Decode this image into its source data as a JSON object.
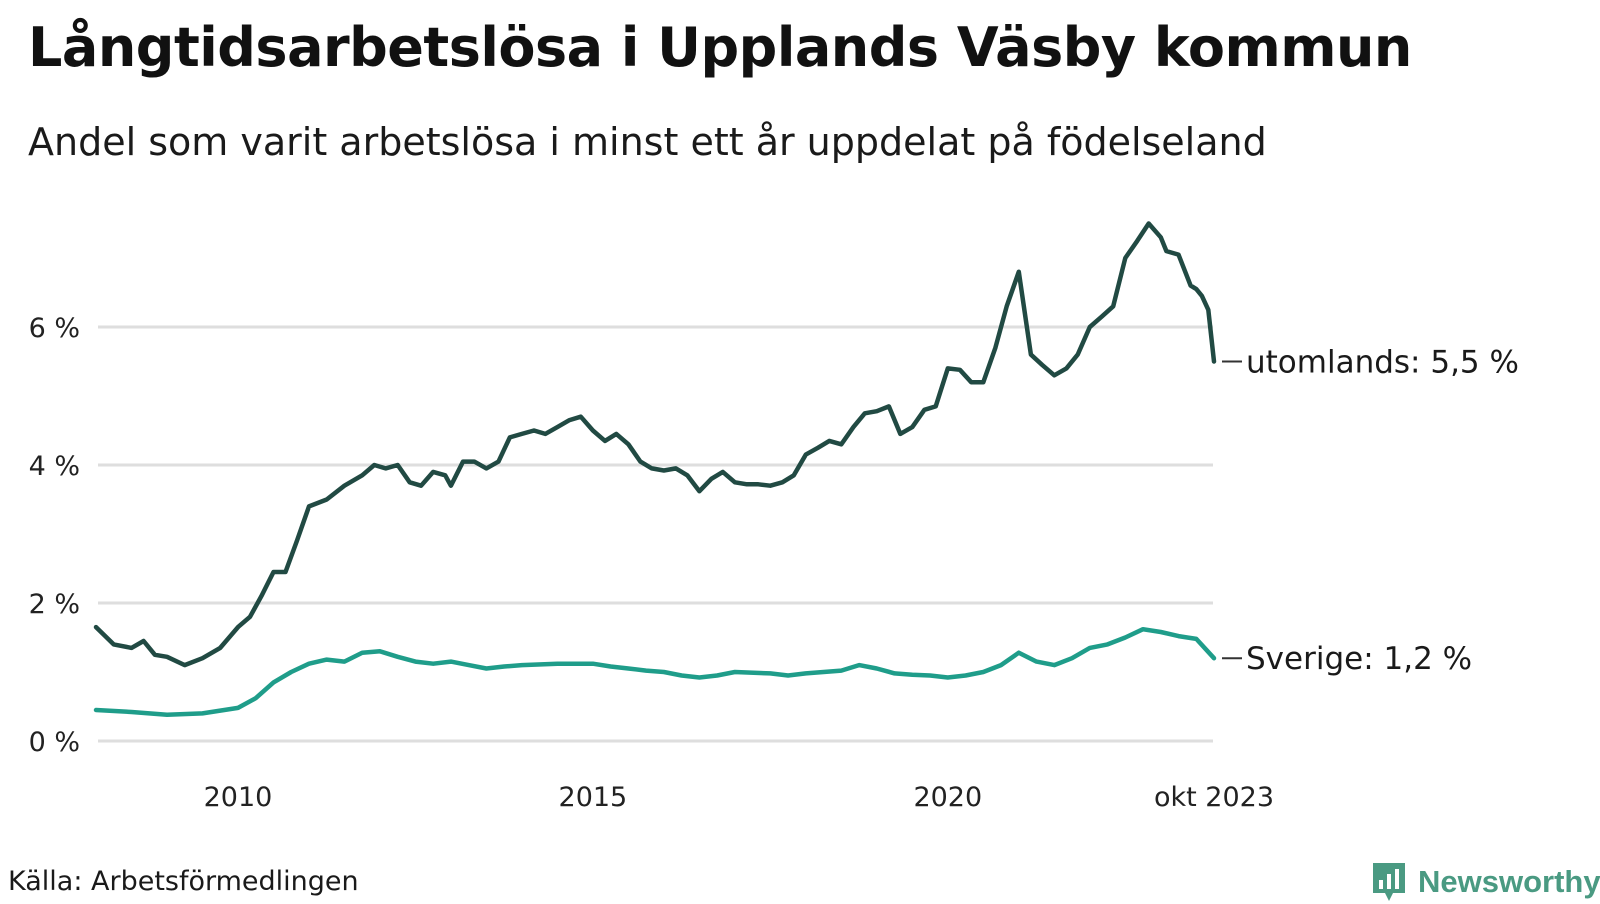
{
  "title": "Långtidsarbetslösa i Upplands Väsby kommun",
  "subtitle": "Andel som varit arbetslösa i minst ett år uppdelat på födelseland",
  "source": "Källa: Arbetsförmedlingen",
  "brand": {
    "name": "Newsworthy",
    "icon": "newsworthy-logo-icon",
    "color": "#4a9a82"
  },
  "chart_data": {
    "type": "line",
    "title": "Långtidsarbetslösa i Upplands Väsby kommun",
    "xlabel": "",
    "ylabel": "",
    "xlim": [
      2008.0,
      2023.75
    ],
    "ylim": [
      0,
      7.6
    ],
    "grid": true,
    "y_ticks": [
      {
        "value": 0,
        "label": "0 %"
      },
      {
        "value": 2,
        "label": "2 %"
      },
      {
        "value": 4,
        "label": "4 %"
      },
      {
        "value": 6,
        "label": "6 %"
      }
    ],
    "x_ticks": [
      {
        "value": 2010,
        "label": "2010"
      },
      {
        "value": 2015,
        "label": "2015"
      },
      {
        "value": 2020,
        "label": "2020"
      },
      {
        "value": 2023.75,
        "label": "okt 2023"
      }
    ],
    "series": [
      {
        "name": "utomlands",
        "end_label": "utomlands: 5,5 %",
        "color": "#214a43",
        "points": [
          [
            2008.0,
            1.65
          ],
          [
            2008.25,
            1.4
          ],
          [
            2008.5,
            1.35
          ],
          [
            2008.67,
            1.45
          ],
          [
            2008.83,
            1.25
          ],
          [
            2009.0,
            1.22
          ],
          [
            2009.25,
            1.1
          ],
          [
            2009.5,
            1.2
          ],
          [
            2009.75,
            1.35
          ],
          [
            2010.0,
            1.65
          ],
          [
            2010.17,
            1.8
          ],
          [
            2010.33,
            2.1
          ],
          [
            2010.5,
            2.45
          ],
          [
            2010.67,
            2.45
          ],
          [
            2010.83,
            2.9
          ],
          [
            2011.0,
            3.4
          ],
          [
            2011.25,
            3.5
          ],
          [
            2011.5,
            3.7
          ],
          [
            2011.75,
            3.85
          ],
          [
            2011.92,
            4.0
          ],
          [
            2012.08,
            3.95
          ],
          [
            2012.25,
            4.0
          ],
          [
            2012.42,
            3.75
          ],
          [
            2012.58,
            3.7
          ],
          [
            2012.75,
            3.9
          ],
          [
            2012.92,
            3.85
          ],
          [
            2013.0,
            3.7
          ],
          [
            2013.17,
            4.05
          ],
          [
            2013.33,
            4.05
          ],
          [
            2013.5,
            3.95
          ],
          [
            2013.67,
            4.05
          ],
          [
            2013.83,
            4.4
          ],
          [
            2014.0,
            4.45
          ],
          [
            2014.17,
            4.5
          ],
          [
            2014.33,
            4.45
          ],
          [
            2014.5,
            4.55
          ],
          [
            2014.67,
            4.65
          ],
          [
            2014.83,
            4.7
          ],
          [
            2015.0,
            4.5
          ],
          [
            2015.17,
            4.35
          ],
          [
            2015.33,
            4.45
          ],
          [
            2015.5,
            4.3
          ],
          [
            2015.67,
            4.05
          ],
          [
            2015.83,
            3.95
          ],
          [
            2016.0,
            3.92
          ],
          [
            2016.17,
            3.95
          ],
          [
            2016.33,
            3.85
          ],
          [
            2016.5,
            3.62
          ],
          [
            2016.67,
            3.8
          ],
          [
            2016.83,
            3.9
          ],
          [
            2017.0,
            3.75
          ],
          [
            2017.17,
            3.72
          ],
          [
            2017.33,
            3.72
          ],
          [
            2017.5,
            3.7
          ],
          [
            2017.67,
            3.75
          ],
          [
            2017.83,
            3.85
          ],
          [
            2018.0,
            4.15
          ],
          [
            2018.17,
            4.25
          ],
          [
            2018.33,
            4.35
          ],
          [
            2018.5,
            4.3
          ],
          [
            2018.67,
            4.55
          ],
          [
            2018.83,
            4.75
          ],
          [
            2019.0,
            4.78
          ],
          [
            2019.17,
            4.85
          ],
          [
            2019.33,
            4.45
          ],
          [
            2019.5,
            4.55
          ],
          [
            2019.67,
            4.8
          ],
          [
            2019.83,
            4.85
          ],
          [
            2020.0,
            5.4
          ],
          [
            2020.17,
            5.38
          ],
          [
            2020.33,
            5.2
          ],
          [
            2020.5,
            5.2
          ],
          [
            2020.67,
            5.7
          ],
          [
            2020.83,
            6.3
          ],
          [
            2021.0,
            6.8
          ],
          [
            2021.17,
            5.6
          ],
          [
            2021.33,
            5.45
          ],
          [
            2021.5,
            5.3
          ],
          [
            2021.67,
            5.4
          ],
          [
            2021.83,
            5.6
          ],
          [
            2022.0,
            6.0
          ],
          [
            2022.17,
            6.15
          ],
          [
            2022.33,
            6.3
          ],
          [
            2022.5,
            7.0
          ],
          [
            2022.67,
            7.25
          ],
          [
            2022.83,
            7.5
          ],
          [
            2023.0,
            7.3
          ],
          [
            2023.08,
            7.1
          ],
          [
            2023.25,
            7.05
          ],
          [
            2023.42,
            6.6
          ],
          [
            2023.5,
            6.55
          ],
          [
            2023.58,
            6.45
          ],
          [
            2023.67,
            6.25
          ],
          [
            2023.75,
            5.5
          ]
        ]
      },
      {
        "name": "Sverige",
        "end_label": "Sverige: 1,2 %",
        "color": "#1f9d8a",
        "points": [
          [
            2008.0,
            0.45
          ],
          [
            2008.5,
            0.42
          ],
          [
            2009.0,
            0.38
          ],
          [
            2009.5,
            0.4
          ],
          [
            2010.0,
            0.48
          ],
          [
            2010.25,
            0.62
          ],
          [
            2010.5,
            0.85
          ],
          [
            2010.75,
            1.0
          ],
          [
            2011.0,
            1.12
          ],
          [
            2011.25,
            1.18
          ],
          [
            2011.5,
            1.15
          ],
          [
            2011.75,
            1.28
          ],
          [
            2012.0,
            1.3
          ],
          [
            2012.25,
            1.22
          ],
          [
            2012.5,
            1.15
          ],
          [
            2012.75,
            1.12
          ],
          [
            2013.0,
            1.15
          ],
          [
            2013.25,
            1.1
          ],
          [
            2013.5,
            1.05
          ],
          [
            2013.75,
            1.08
          ],
          [
            2014.0,
            1.1
          ],
          [
            2014.5,
            1.12
          ],
          [
            2015.0,
            1.12
          ],
          [
            2015.25,
            1.08
          ],
          [
            2015.5,
            1.05
          ],
          [
            2015.75,
            1.02
          ],
          [
            2016.0,
            1.0
          ],
          [
            2016.25,
            0.95
          ],
          [
            2016.5,
            0.92
          ],
          [
            2016.75,
            0.95
          ],
          [
            2017.0,
            1.0
          ],
          [
            2017.5,
            0.98
          ],
          [
            2017.75,
            0.95
          ],
          [
            2018.0,
            0.98
          ],
          [
            2018.5,
            1.02
          ],
          [
            2018.75,
            1.1
          ],
          [
            2019.0,
            1.05
          ],
          [
            2019.25,
            0.98
          ],
          [
            2019.5,
            0.96
          ],
          [
            2019.75,
            0.95
          ],
          [
            2020.0,
            0.92
          ],
          [
            2020.25,
            0.95
          ],
          [
            2020.5,
            1.0
          ],
          [
            2020.75,
            1.1
          ],
          [
            2021.0,
            1.28
          ],
          [
            2021.25,
            1.15
          ],
          [
            2021.5,
            1.1
          ],
          [
            2021.75,
            1.2
          ],
          [
            2022.0,
            1.35
          ],
          [
            2022.25,
            1.4
          ],
          [
            2022.5,
            1.5
          ],
          [
            2022.75,
            1.62
          ],
          [
            2023.0,
            1.58
          ],
          [
            2023.25,
            1.52
          ],
          [
            2023.5,
            1.48
          ],
          [
            2023.75,
            1.2
          ]
        ]
      }
    ]
  }
}
